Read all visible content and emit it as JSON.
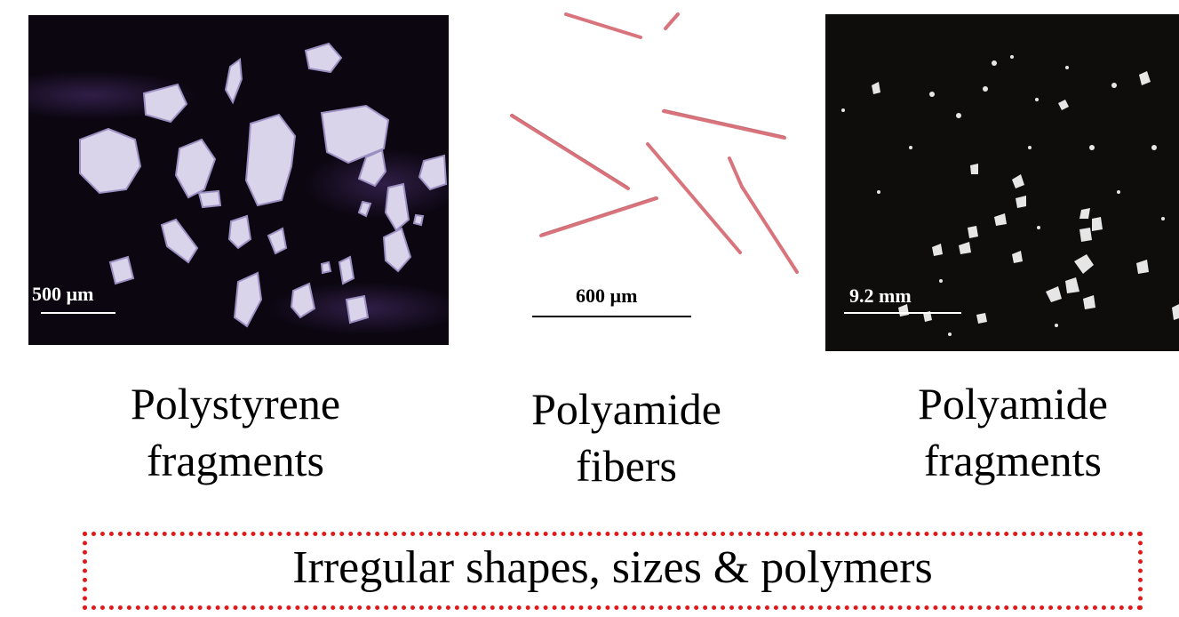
{
  "panels": [
    {
      "scale_label": "500 µm",
      "caption_line1": "Polystyrene",
      "caption_line2": "fragments",
      "background": "#0b0610",
      "particle_color": "#d9d4ea"
    },
    {
      "scale_label": "600 µm",
      "caption_line1": "Polyamide",
      "caption_line2": "fibers",
      "background": "#ffffff",
      "particle_color": "#d9747c"
    },
    {
      "scale_label": "9.2 mm",
      "caption_line1": "Polyamide",
      "caption_line2": "fragments",
      "background": "#0f0d0c",
      "particle_color": "#e6e6e6"
    }
  ],
  "summary": {
    "text": "Irregular shapes, sizes & polymers",
    "border_color": "#e01a1a"
  }
}
